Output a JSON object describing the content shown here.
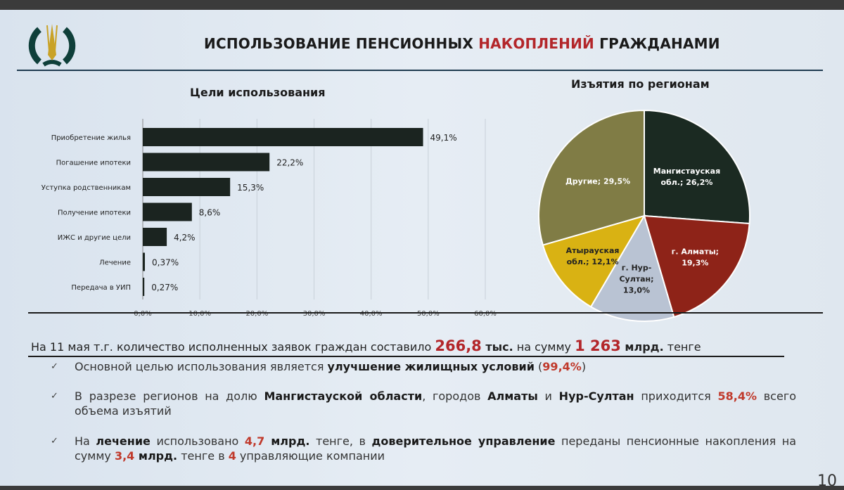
{
  "slide": {
    "title_part1": "ИСПОЛЬЗОВАНИЕ ПЕНСИОННЫХ ",
    "title_part2": "НАКОПЛЕНИЙ",
    "title_part3": " ГРАЖДАНАМИ",
    "page_number": "10",
    "colors": {
      "accent_red": "#b3262a",
      "bar": "#1b2420"
    }
  },
  "chart_data": [
    {
      "type": "bar",
      "orientation": "horizontal",
      "title": "Цели использования",
      "categories": [
        "Приобретение жилья",
        "Погашение ипотеки",
        "Уступка родственникам",
        "Получение ипотеки",
        "ИЖС и другие цели",
        "Лечение",
        "Передача в УИП"
      ],
      "values": [
        49.1,
        22.2,
        15.3,
        8.6,
        4.2,
        0.37,
        0.27
      ],
      "data_labels": [
        "49,1%",
        "22,2%",
        "15,3%",
        "8,6%",
        "4,2%",
        "0,37%",
        "0,27%"
      ],
      "xlim": [
        0,
        60
      ],
      "xticks": [
        "0,0%",
        "10,0%",
        "20,0%",
        "30,0%",
        "40,0%",
        "50,0%",
        "60,0%"
      ],
      "grid": true
    },
    {
      "type": "pie",
      "title": "Изъятия по регионам",
      "slices": [
        {
          "label": "Мангистауская обл.; 26,2%",
          "value": 26.2,
          "color": "#1b2a22"
        },
        {
          "label": "г. Алматы; 19,3%",
          "value": 19.3,
          "color": "#8e2318"
        },
        {
          "label": "г. Нур-Султан; 13,0%",
          "value": 13.0,
          "color": "#b9c3d3"
        },
        {
          "label": "Атырауская обл.; 12,1%",
          "value": 12.1,
          "color": "#d9b213"
        },
        {
          "label": "Другие; 29,5%",
          "value": 29.5,
          "color": "#807c45"
        }
      ]
    }
  ],
  "summary": [
    {
      "t": "На 11 мая т.г. количество исполненных заявок граждан составило ",
      "s": ""
    },
    {
      "t": "266,8",
      "s": "big"
    },
    {
      "t": " тыс.",
      "s": "bold"
    },
    {
      "t": " на сумму ",
      "s": ""
    },
    {
      "t": "1 263",
      "s": "big"
    },
    {
      "t": " млрд.",
      "s": "bold"
    },
    {
      "t": " тенге",
      "s": ""
    }
  ],
  "bullets": [
    [
      {
        "t": "Основной целью использования является ",
        "s": ""
      },
      {
        "t": "улучшение жилищных условий",
        "s": "b"
      },
      {
        "t": " (",
        "s": ""
      },
      {
        "t": "99,4%",
        "s": "r"
      },
      {
        "t": ")",
        "s": ""
      }
    ],
    [
      {
        "t": "В разрезе регионов на долю ",
        "s": ""
      },
      {
        "t": "Мангистауской области",
        "s": "b"
      },
      {
        "t": ", городов ",
        "s": ""
      },
      {
        "t": "Алматы",
        "s": "b"
      },
      {
        "t": " и ",
        "s": ""
      },
      {
        "t": "Нур-Султан",
        "s": "b"
      },
      {
        "t": " приходится ",
        "s": ""
      },
      {
        "t": "58,4%",
        "s": "r"
      },
      {
        "t": " всего объема изъятий",
        "s": ""
      }
    ],
    [
      {
        "t": "На ",
        "s": ""
      },
      {
        "t": "лечение",
        "s": "b"
      },
      {
        "t": " использовано ",
        "s": ""
      },
      {
        "t": "4,7",
        "s": "r"
      },
      {
        "t": " млрд.",
        "s": "b"
      },
      {
        "t": " тенге, в ",
        "s": ""
      },
      {
        "t": "доверительное управление",
        "s": "b"
      },
      {
        "t": " переданы пенсионные накопления на сумму ",
        "s": ""
      },
      {
        "t": "3,4",
        "s": "r"
      },
      {
        "t": " млрд.",
        "s": "b"
      },
      {
        "t": " тенге в ",
        "s": ""
      },
      {
        "t": "4",
        "s": "r"
      },
      {
        "t": " управляющие компании",
        "s": ""
      }
    ]
  ]
}
